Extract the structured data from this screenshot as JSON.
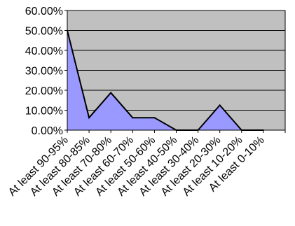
{
  "chart_data": {
    "type": "area",
    "categories": [
      "At least 90-95%",
      "At least 80-85%",
      "At least 70-80%",
      "At least 60-70%",
      "At least 50-60%",
      "At least 40-50%",
      "At least 30-40%",
      "At least 20-30%",
      "At least 10-20%",
      "At least 0-10%"
    ],
    "series": [
      {
        "values": [
          50.0,
          6.25,
          18.75,
          6.25,
          6.25,
          0.0,
          0.0,
          12.5,
          0.0,
          0.0
        ]
      }
    ],
    "ylim": [
      0,
      60
    ],
    "yticks": [
      0,
      10,
      20,
      30,
      40,
      50,
      60
    ],
    "ytick_labels": [
      "0.00%",
      "10.00%",
      "20.00%",
      "30.00%",
      "40.00%",
      "50.00%",
      "60.00%"
    ],
    "grid": true,
    "colors": {
      "plot_bg": "#c0c0c0",
      "fill": "#9999ff",
      "line": "#000000",
      "grid": "#000000"
    }
  }
}
